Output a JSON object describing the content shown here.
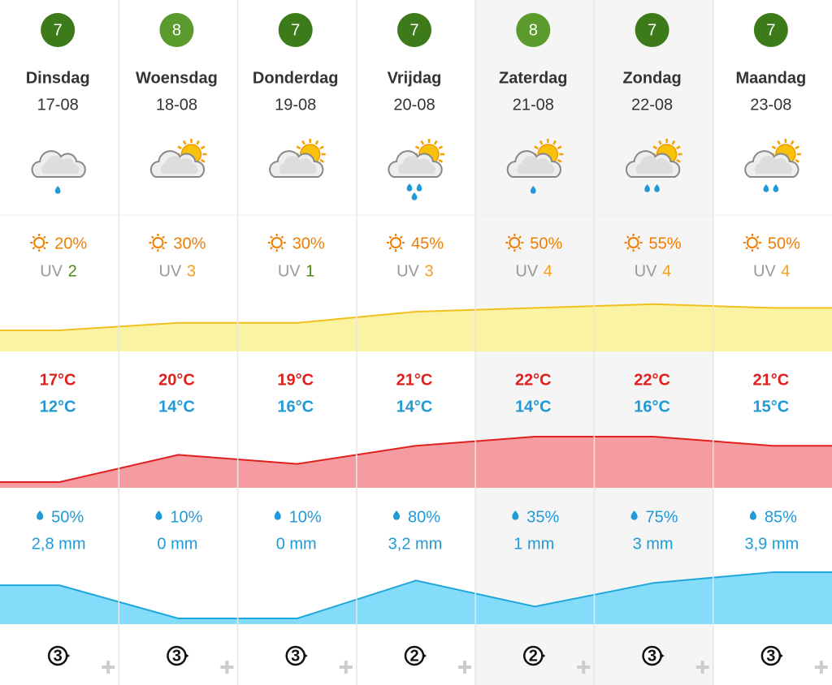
{
  "uv_label": "UV",
  "days": [
    {
      "score": 7,
      "score_color": "#3d7a1a",
      "day": "Dinsdag",
      "date": "17-08",
      "weekend": false,
      "icon_sun": false,
      "drops": 1,
      "sun": 20,
      "sun_label": "20%",
      "uv": 2,
      "uv_color": "#4a8a1c",
      "tmax": 17,
      "tmax_label": "17°C",
      "tmin_label": "12°C",
      "rain_label": "50%",
      "mm": 2.8,
      "mm_label": "2,8 mm",
      "wind": 3
    },
    {
      "score": 8,
      "score_color": "#5b9a2c",
      "day": "Woensdag",
      "date": "18-08",
      "weekend": false,
      "icon_sun": true,
      "drops": 0,
      "sun": 30,
      "sun_label": "30%",
      "uv": 3,
      "uv_color": "#f0a020",
      "tmax": 20,
      "tmax_label": "20°C",
      "tmin_label": "14°C",
      "rain_label": "10%",
      "mm": 0,
      "mm_label": "0 mm",
      "wind": 3
    },
    {
      "score": 7,
      "score_color": "#3d7a1a",
      "day": "Donderdag",
      "date": "19-08",
      "weekend": false,
      "icon_sun": true,
      "drops": 0,
      "sun": 30,
      "sun_label": "30%",
      "uv": 1,
      "uv_color": "#4a8a1c",
      "tmax": 19,
      "tmax_label": "19°C",
      "tmin_label": "16°C",
      "rain_label": "10%",
      "mm": 0,
      "mm_label": "0 mm",
      "wind": 3
    },
    {
      "score": 7,
      "score_color": "#3d7a1a",
      "day": "Vrijdag",
      "date": "20-08",
      "weekend": false,
      "icon_sun": true,
      "drops": 3,
      "sun": 45,
      "sun_label": "45%",
      "uv": 3,
      "uv_color": "#f0a020",
      "tmax": 21,
      "tmax_label": "21°C",
      "tmin_label": "14°C",
      "rain_label": "80%",
      "mm": 3.2,
      "mm_label": "3,2 mm",
      "wind": 2
    },
    {
      "score": 8,
      "score_color": "#5b9a2c",
      "day": "Zaterdag",
      "date": "21-08",
      "weekend": true,
      "icon_sun": true,
      "drops": 1,
      "sun": 50,
      "sun_label": "50%",
      "uv": 4,
      "uv_color": "#f0a020",
      "tmax": 22,
      "tmax_label": "22°C",
      "tmin_label": "14°C",
      "rain_label": "35%",
      "mm": 1,
      "mm_label": "1 mm",
      "wind": 2
    },
    {
      "score": 7,
      "score_color": "#3d7a1a",
      "day": "Zondag",
      "date": "22-08",
      "weekend": true,
      "icon_sun": true,
      "drops": 2,
      "sun": 55,
      "sun_label": "55%",
      "uv": 4,
      "uv_color": "#f0a020",
      "tmax": 22,
      "tmax_label": "22°C",
      "tmin_label": "16°C",
      "rain_label": "75%",
      "mm": 3,
      "mm_label": "3 mm",
      "wind": 3
    },
    {
      "score": 7,
      "score_color": "#3d7a1a",
      "day": "Maandag",
      "date": "23-08",
      "weekend": false,
      "icon_sun": true,
      "drops": 2,
      "sun": 50,
      "sun_label": "50%",
      "uv": 4,
      "uv_color": "#f0a020",
      "tmax": 21,
      "tmax_label": "21°C",
      "tmin_label": "15°C",
      "rain_label": "85%",
      "mm": 3.9,
      "mm_label": "3,9 mm",
      "wind": 3
    }
  ]
}
